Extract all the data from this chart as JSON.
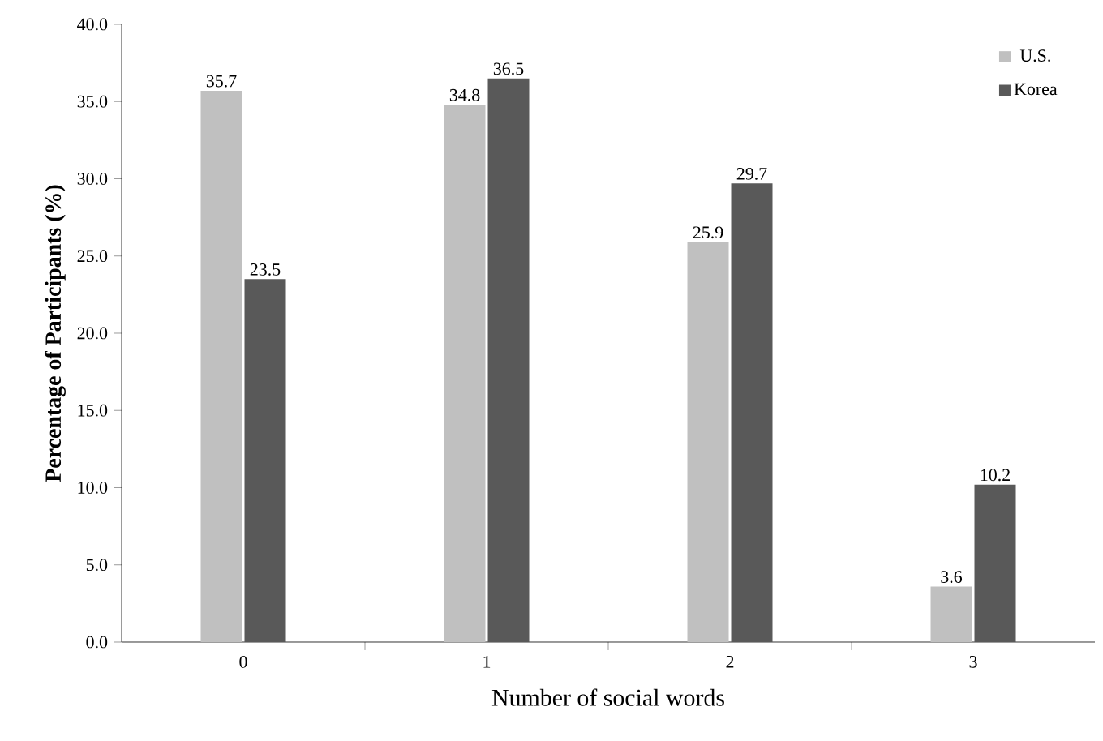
{
  "chart_data": {
    "type": "bar",
    "xlabel": "Number of social words",
    "ylabel": "Percentage of Participants (%)",
    "categories": [
      "0",
      "1",
      "2",
      "3"
    ],
    "series": [
      {
        "name": "U.S.",
        "color": "#c0c0c0",
        "values": [
          35.7,
          34.8,
          25.9,
          3.6
        ]
      },
      {
        "name": "Korea",
        "color": "#595959",
        "values": [
          23.5,
          36.5,
          29.7,
          10.2
        ]
      }
    ],
    "ylim": [
      0,
      40
    ],
    "yticks": [
      {
        "value": 0,
        "label": "0.0"
      },
      {
        "value": 5,
        "label": "5.0"
      },
      {
        "value": 10,
        "label": "10.0"
      },
      {
        "value": 15,
        "label": "15.0"
      },
      {
        "value": 20,
        "label": "20.0"
      },
      {
        "value": 25,
        "label": "25.0"
      },
      {
        "value": 30,
        "label": "30.0"
      },
      {
        "value": 35,
        "label": "35.0"
      },
      {
        "value": 40,
        "label": "40.0"
      }
    ],
    "data_labels": true,
    "legend": "top right",
    "grid": false
  }
}
